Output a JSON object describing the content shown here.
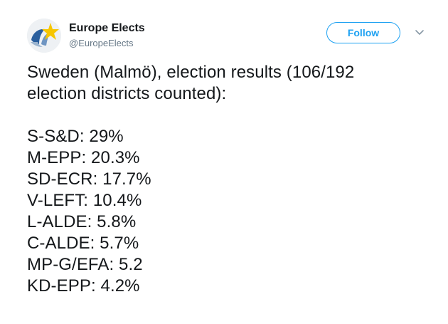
{
  "account": {
    "display_name": "Europe Elects",
    "handle": "@EuropeElects",
    "avatar_icon": "europe-elects-logo-icon"
  },
  "actions": {
    "follow_label": "Follow",
    "menu_icon": "chevron-down-icon"
  },
  "tweet": {
    "intro_line_1": "Sweden (Malmö), election results (106/192",
    "intro_line_2": "election districts counted):",
    "results": [
      "S-S&D: 29%",
      "M-EPP: 20.3%",
      "SD-ECR: 17.7%",
      "V-LEFT: 10.4%",
      "L-ALDE: 5.8%",
      "C-ALDE: 5.7%",
      "MP-G/EFA: 5.2",
      "KD-EPP: 4.2%"
    ]
  },
  "colors": {
    "accent": "#1da1f2",
    "text": "#14171a",
    "secondary_text": "#657786",
    "logo_blue": "#2a5f9e",
    "logo_yellow": "#f7c600"
  }
}
